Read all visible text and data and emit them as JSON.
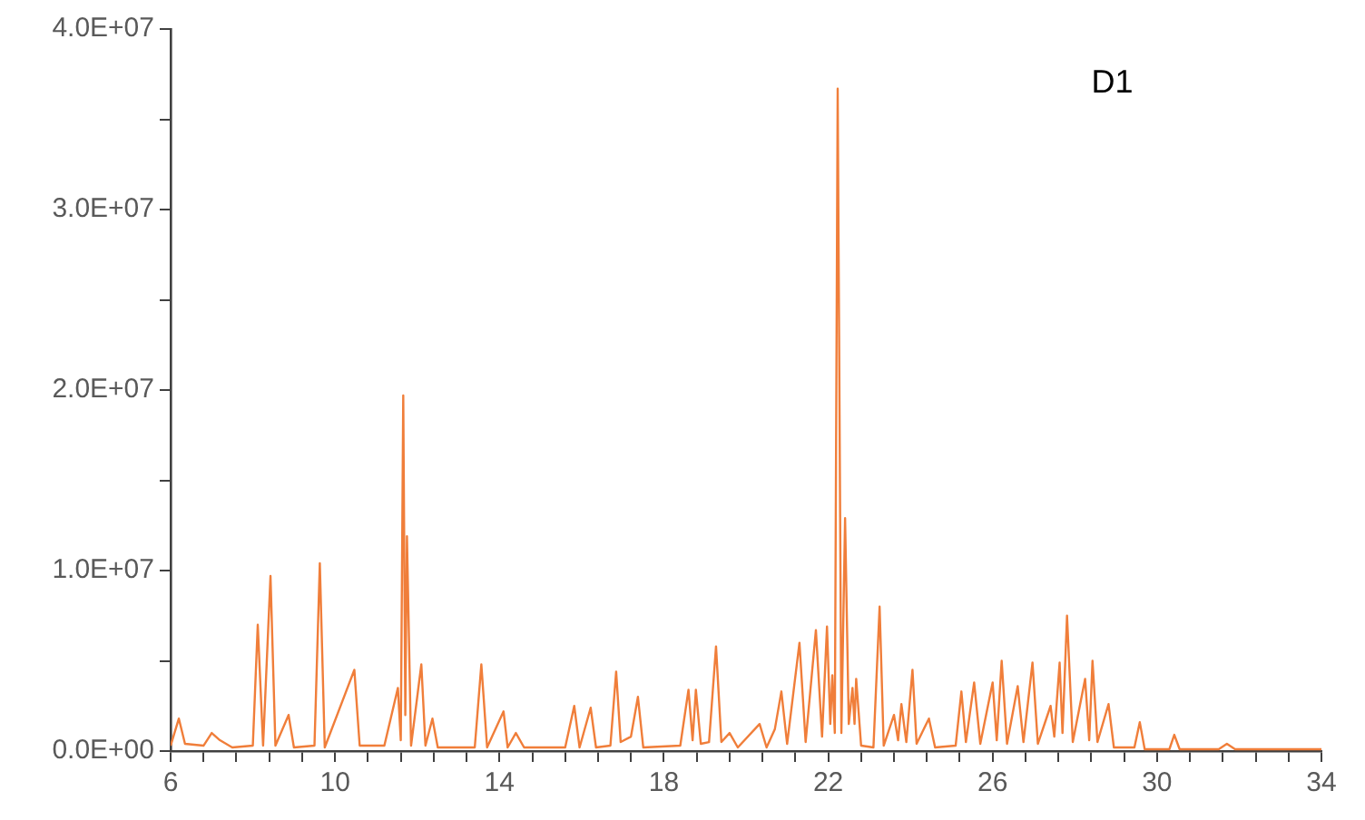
{
  "chart_data": {
    "type": "line",
    "annotations": [
      "D1"
    ],
    "xlim": [
      6,
      34
    ],
    "xticks": [
      6,
      {
        "value": 6.8,
        "label": null
      },
      {
        "value": 7.6,
        "label": null
      },
      {
        "value": 8.4,
        "label": null
      },
      {
        "value": 9.2,
        "label": null
      },
      10,
      {
        "value": 10.8,
        "label": null
      },
      {
        "value": 11.6,
        "label": null
      },
      {
        "value": 12.4,
        "label": null
      },
      {
        "value": 13.2,
        "label": null
      },
      14,
      {
        "value": 14.8,
        "label": null
      },
      {
        "value": 15.6,
        "label": null
      },
      {
        "value": 16.4,
        "label": null
      },
      {
        "value": 17.2,
        "label": null
      },
      18,
      {
        "value": 18.8,
        "label": null
      },
      {
        "value": 19.6,
        "label": null
      },
      {
        "value": 20.4,
        "label": null
      },
      {
        "value": 21.2,
        "label": null
      },
      22,
      {
        "value": 22.8,
        "label": null
      },
      {
        "value": 23.6,
        "label": null
      },
      {
        "value": 24.4,
        "label": null
      },
      {
        "value": 25.2,
        "label": null
      },
      26,
      {
        "value": 26.8,
        "label": null
      },
      {
        "value": 27.6,
        "label": null
      },
      {
        "value": 28.4,
        "label": null
      },
      {
        "value": 29.2,
        "label": null
      },
      30,
      {
        "value": 30.8,
        "label": null
      },
      {
        "value": 31.6,
        "label": null
      },
      {
        "value": 32.4,
        "label": null
      },
      {
        "value": 33.2,
        "label": null
      },
      34
    ],
    "ylim": [
      0,
      40000000
    ],
    "yticks": [
      {
        "value": 0,
        "label": "0.0E+00"
      },
      {
        "value": 5000000,
        "label": null
      },
      {
        "value": 10000000,
        "label": "1.0E+07"
      },
      {
        "value": 15000000,
        "label": null
      },
      {
        "value": 20000000,
        "label": "2.0E+07"
      },
      {
        "value": 25000000,
        "label": null
      },
      {
        "value": 30000000,
        "label": "3.0E+07"
      },
      {
        "value": 35000000,
        "label": null
      },
      {
        "value": 40000000,
        "label": "4.0E+07"
      }
    ],
    "grid": false,
    "legend": false,
    "marker": "none",
    "line_style": "solid",
    "series": [
      {
        "color": "#f07e3a",
        "x": [
          6.0,
          6.2,
          6.35,
          6.8,
          7.0,
          7.2,
          7.5,
          8.0,
          8.12,
          8.25,
          8.43,
          8.55,
          8.87,
          9.0,
          9.5,
          9.63,
          9.75,
          10.47,
          10.6,
          11.2,
          11.53,
          11.6,
          11.66,
          11.71,
          11.75,
          11.85,
          12.1,
          12.2,
          12.37,
          12.5,
          13.4,
          13.56,
          13.7,
          14.1,
          14.2,
          14.4,
          14.6,
          15.6,
          15.82,
          15.95,
          16.22,
          16.35,
          16.7,
          16.84,
          16.95,
          17.2,
          17.37,
          17.5,
          18.4,
          18.6,
          18.7,
          18.78,
          18.9,
          19.1,
          19.27,
          19.4,
          19.6,
          19.8,
          20.33,
          20.5,
          20.7,
          20.86,
          21.0,
          21.3,
          21.45,
          21.7,
          21.85,
          21.97,
          22.05,
          22.1,
          22.16,
          22.23,
          22.32,
          22.41,
          22.5,
          22.59,
          22.64,
          22.68,
          22.8,
          23.1,
          23.25,
          23.35,
          23.6,
          23.7,
          23.78,
          23.9,
          24.05,
          24.15,
          24.45,
          24.6,
          25.1,
          25.24,
          25.35,
          25.55,
          25.7,
          26.0,
          26.1,
          26.22,
          26.35,
          26.61,
          26.75,
          26.97,
          27.1,
          27.41,
          27.5,
          27.63,
          27.7,
          27.81,
          27.95,
          28.25,
          28.35,
          28.43,
          28.55,
          28.82,
          28.95,
          29.45,
          29.58,
          29.7,
          30.3,
          30.42,
          30.55,
          31.5,
          31.7,
          31.9,
          34
        ],
        "values": [
          300000.0,
          1800000.0,
          400000.0,
          300000.0,
          1000000.0,
          600000.0,
          200000.0,
          300000.0,
          7000000.0,
          300000.0,
          9700000.0,
          300000.0,
          2000000.0,
          200000.0,
          300000.0,
          10400000.0,
          200000.0,
          4500000.0,
          300000.0,
          300000.0,
          3500000.0,
          600000.0,
          19700000.0,
          2000000.0,
          11900000.0,
          300000.0,
          4800000.0,
          300000.0,
          1800000.0,
          200000.0,
          200000.0,
          4800000.0,
          200000.0,
          2200000.0,
          200000.0,
          1000000.0,
          200000.0,
          200000.0,
          2500000.0,
          200000.0,
          2400000.0,
          200000.0,
          300000.0,
          4400000.0,
          500000.0,
          800000.0,
          3000000.0,
          200000.0,
          300000.0,
          3400000.0,
          600000.0,
          3400000.0,
          400000.0,
          500000.0,
          5800000.0,
          500000.0,
          1000000.0,
          200000.0,
          1500000.0,
          200000.0,
          1200000.0,
          3300000.0,
          400000.0,
          6000000.0,
          500000.0,
          6700000.0,
          800000.0,
          6900000.0,
          1500000.0,
          4200000.0,
          1000000.0,
          36700000.0,
          1000000.0,
          12900000.0,
          1500000.0,
          3500000.0,
          1500000.0,
          4000000.0,
          300000.0,
          200000.0,
          8000000.0,
          300000.0,
          2000000.0,
          600000.0,
          2600000.0,
          500000.0,
          4500000.0,
          400000.0,
          1800000.0,
          200000.0,
          300000.0,
          3300000.0,
          500000.0,
          3800000.0,
          400000.0,
          3800000.0,
          600000.0,
          5000000.0,
          400000.0,
          3600000.0,
          500000.0,
          4900000.0,
          400000.0,
          2500000.0,
          800000.0,
          4900000.0,
          1000000.0,
          7500000.0,
          500000.0,
          4000000.0,
          600000.0,
          5000000.0,
          500000.0,
          2600000.0,
          200000.0,
          200000.0,
          1600000.0,
          100000.0,
          100000.0,
          900000.0,
          100000.0,
          100000.0,
          400000.0,
          100000.0,
          100000.0
        ]
      }
    ]
  }
}
